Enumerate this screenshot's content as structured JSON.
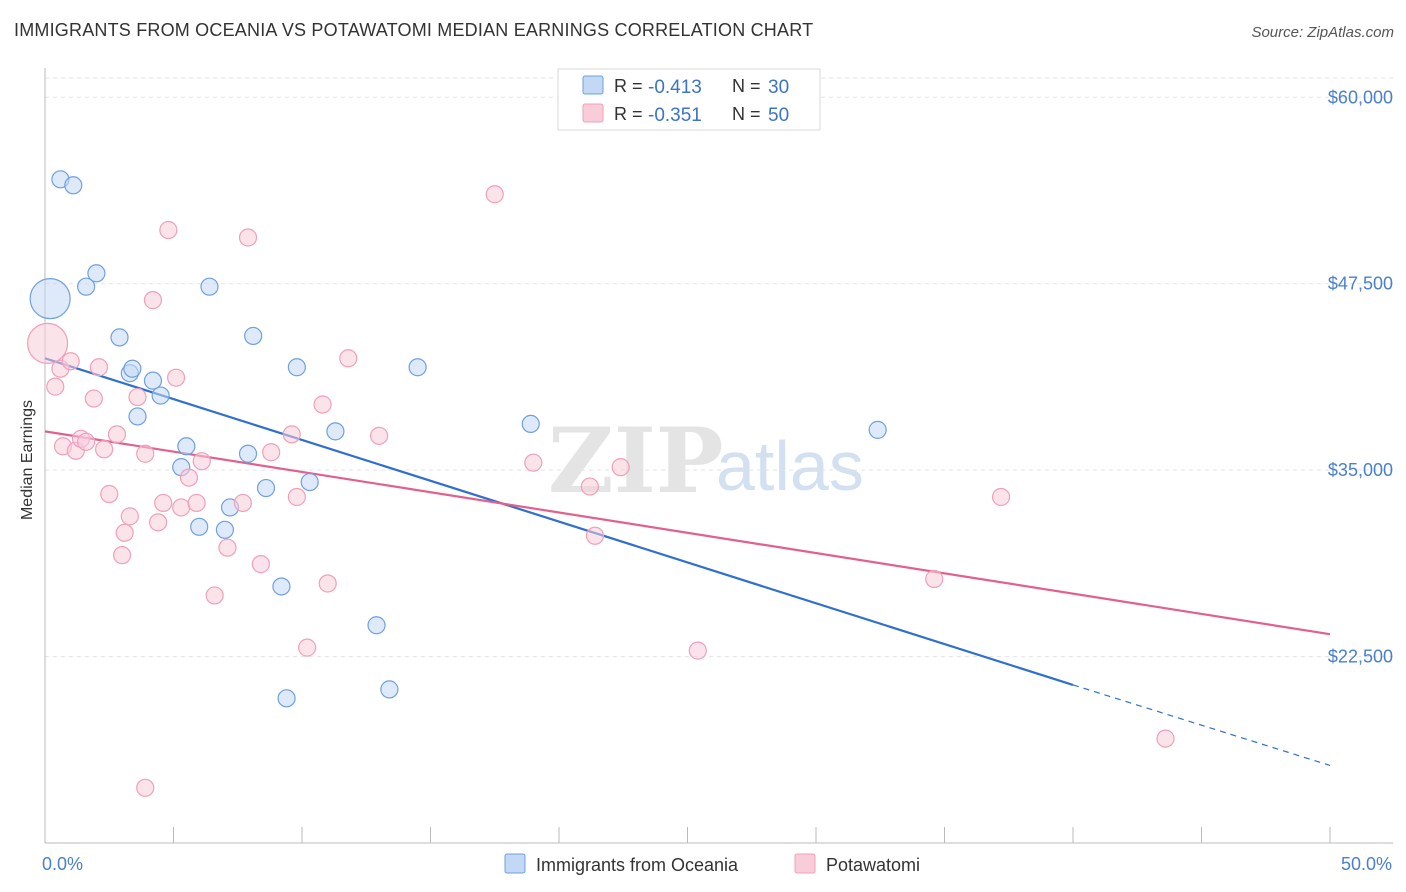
{
  "title": "IMMIGRANTS FROM OCEANIA VS POTAWATOMI MEDIAN EARNINGS CORRELATION CHART",
  "source": "Source: ZipAtlas.com",
  "watermark": {
    "zip": "ZIP",
    "atlas": "atlas"
  },
  "chart_data": {
    "type": "scatter",
    "ylabel": "Median Earnings",
    "xlim": [
      0,
      50
    ],
    "ylim": [
      10000,
      62500
    ],
    "x_tick_labels": [
      "0.0%",
      "50.0%"
    ],
    "y_ticks": [
      22500,
      35000,
      47500,
      60000
    ],
    "y_tick_labels": [
      "$22,500",
      "$35,000",
      "$47,500",
      "$60,000"
    ],
    "grid": true,
    "legend_position": "top-center",
    "series": [
      {
        "name": "Immigrants from Oceania",
        "color": "#6fa0e0",
        "fill": "#c2d8f4",
        "line_color": "#2f6fd0",
        "r": "-0.413",
        "n": "30",
        "trend": {
          "x0": 0,
          "y0": 42500,
          "x1": 40,
          "y1": 20600,
          "dash_to_x": 50,
          "dash_to_y": 15200
        },
        "points": [
          {
            "x": 0.6,
            "y": 54500
          },
          {
            "x": 1.1,
            "y": 54100
          },
          {
            "x": 0.2,
            "y": 46500,
            "big": true
          },
          {
            "x": 1.6,
            "y": 47300
          },
          {
            "x": 2.0,
            "y": 48200
          },
          {
            "x": 2.9,
            "y": 43900
          },
          {
            "x": 3.3,
            "y": 41500
          },
          {
            "x": 3.4,
            "y": 41800
          },
          {
            "x": 3.6,
            "y": 38600
          },
          {
            "x": 4.2,
            "y": 41000
          },
          {
            "x": 4.5,
            "y": 40000
          },
          {
            "x": 5.3,
            "y": 35200
          },
          {
            "x": 5.5,
            "y": 36600
          },
          {
            "x": 6.0,
            "y": 31200
          },
          {
            "x": 6.4,
            "y": 47300
          },
          {
            "x": 7.0,
            "y": 31000
          },
          {
            "x": 7.2,
            "y": 32500
          },
          {
            "x": 7.9,
            "y": 36100
          },
          {
            "x": 8.1,
            "y": 44000
          },
          {
            "x": 8.6,
            "y": 33800
          },
          {
            "x": 9.2,
            "y": 27200
          },
          {
            "x": 9.4,
            "y": 19700
          },
          {
            "x": 9.8,
            "y": 41900
          },
          {
            "x": 10.3,
            "y": 34200
          },
          {
            "x": 11.3,
            "y": 37600
          },
          {
            "x": 12.9,
            "y": 24600
          },
          {
            "x": 13.4,
            "y": 20300
          },
          {
            "x": 14.5,
            "y": 41900
          },
          {
            "x": 18.9,
            "y": 38100
          },
          {
            "x": 32.4,
            "y": 37700
          }
        ]
      },
      {
        "name": "Potawatomi",
        "color": "#f0a0b8",
        "fill": "#f8ccd8",
        "line_color": "#e2608c",
        "r": "-0.351",
        "n": "50",
        "trend": {
          "x0": 0,
          "y0": 37600,
          "x1": 50,
          "y1": 24000
        },
        "points": [
          {
            "x": 0.1,
            "y": 43500,
            "big": true
          },
          {
            "x": 0.4,
            "y": 40600
          },
          {
            "x": 0.6,
            "y": 41800
          },
          {
            "x": 0.7,
            "y": 36600
          },
          {
            "x": 1.0,
            "y": 42300
          },
          {
            "x": 1.2,
            "y": 36300
          },
          {
            "x": 1.4,
            "y": 37100
          },
          {
            "x": 1.6,
            "y": 36900
          },
          {
            "x": 1.9,
            "y": 39800
          },
          {
            "x": 2.1,
            "y": 41900
          },
          {
            "x": 2.3,
            "y": 36400
          },
          {
            "x": 2.5,
            "y": 33400
          },
          {
            "x": 2.8,
            "y": 37400
          },
          {
            "x": 3.0,
            "y": 29300
          },
          {
            "x": 3.1,
            "y": 30800
          },
          {
            "x": 3.3,
            "y": 31900
          },
          {
            "x": 3.6,
            "y": 39900
          },
          {
            "x": 3.9,
            "y": 36100
          },
          {
            "x": 4.2,
            "y": 46400
          },
          {
            "x": 4.4,
            "y": 31500
          },
          {
            "x": 4.6,
            "y": 32800
          },
          {
            "x": 4.8,
            "y": 51100
          },
          {
            "x": 5.1,
            "y": 41200
          },
          {
            "x": 5.3,
            "y": 32500
          },
          {
            "x": 5.6,
            "y": 34500
          },
          {
            "x": 5.9,
            "y": 32800
          },
          {
            "x": 6.1,
            "y": 35600
          },
          {
            "x": 6.6,
            "y": 26600
          },
          {
            "x": 7.1,
            "y": 29800
          },
          {
            "x": 7.7,
            "y": 32800
          },
          {
            "x": 7.9,
            "y": 50600
          },
          {
            "x": 8.4,
            "y": 28700
          },
          {
            "x": 8.8,
            "y": 36200
          },
          {
            "x": 9.6,
            "y": 37400
          },
          {
            "x": 9.8,
            "y": 33200
          },
          {
            "x": 10.2,
            "y": 23100
          },
          {
            "x": 10.8,
            "y": 39400
          },
          {
            "x": 11.0,
            "y": 27400
          },
          {
            "x": 11.8,
            "y": 42500
          },
          {
            "x": 13.0,
            "y": 37300
          },
          {
            "x": 17.5,
            "y": 53500
          },
          {
            "x": 19.0,
            "y": 35500
          },
          {
            "x": 21.2,
            "y": 33900
          },
          {
            "x": 21.4,
            "y": 30600
          },
          {
            "x": 22.4,
            "y": 35200
          },
          {
            "x": 25.4,
            "y": 22900
          },
          {
            "x": 34.6,
            "y": 27700
          },
          {
            "x": 37.2,
            "y": 33200
          },
          {
            "x": 43.6,
            "y": 17000
          },
          {
            "x": 3.9,
            "y": 13700
          }
        ]
      }
    ]
  }
}
